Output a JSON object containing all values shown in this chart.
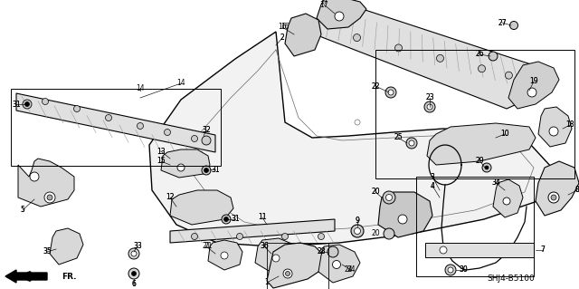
{
  "bg_color": "#ffffff",
  "diagram_code": "SHJ4-B5100",
  "fig_width": 6.4,
  "fig_height": 3.19,
  "dpi": 100
}
